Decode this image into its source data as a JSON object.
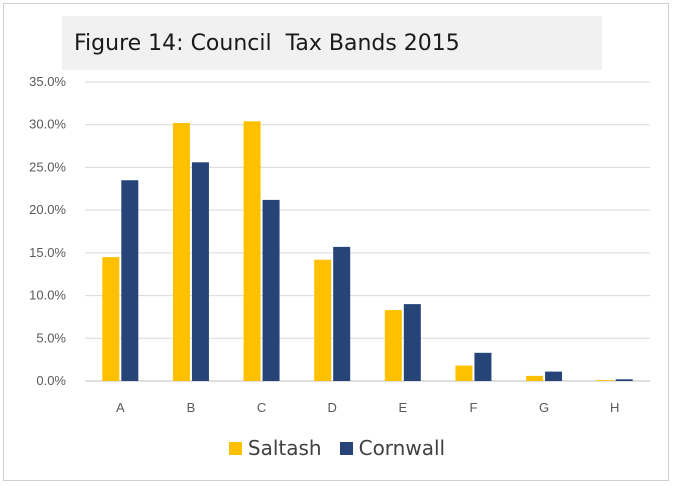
{
  "chart_data": {
    "type": "bar",
    "title": "Figure 14: Council  Tax Bands 2015",
    "categories": [
      "A",
      "B",
      "C",
      "D",
      "E",
      "F",
      "G",
      "H"
    ],
    "series": [
      {
        "name": "Saltash",
        "color": "#ffc000",
        "values": [
          14.5,
          30.2,
          30.4,
          14.2,
          8.3,
          1.8,
          0.6,
          0.1
        ]
      },
      {
        "name": "Cornwall",
        "color": "#264478",
        "values": [
          23.5,
          25.6,
          21.2,
          15.7,
          9.0,
          3.3,
          1.1,
          0.2
        ]
      }
    ],
    "ylim": [
      0,
      35
    ],
    "yticks": [
      "0.0%",
      "5.0%",
      "10.0%",
      "15.0%",
      "20.0%",
      "25.0%",
      "30.0%",
      "35.0%"
    ],
    "grid": true,
    "legend_position": "bottom"
  }
}
